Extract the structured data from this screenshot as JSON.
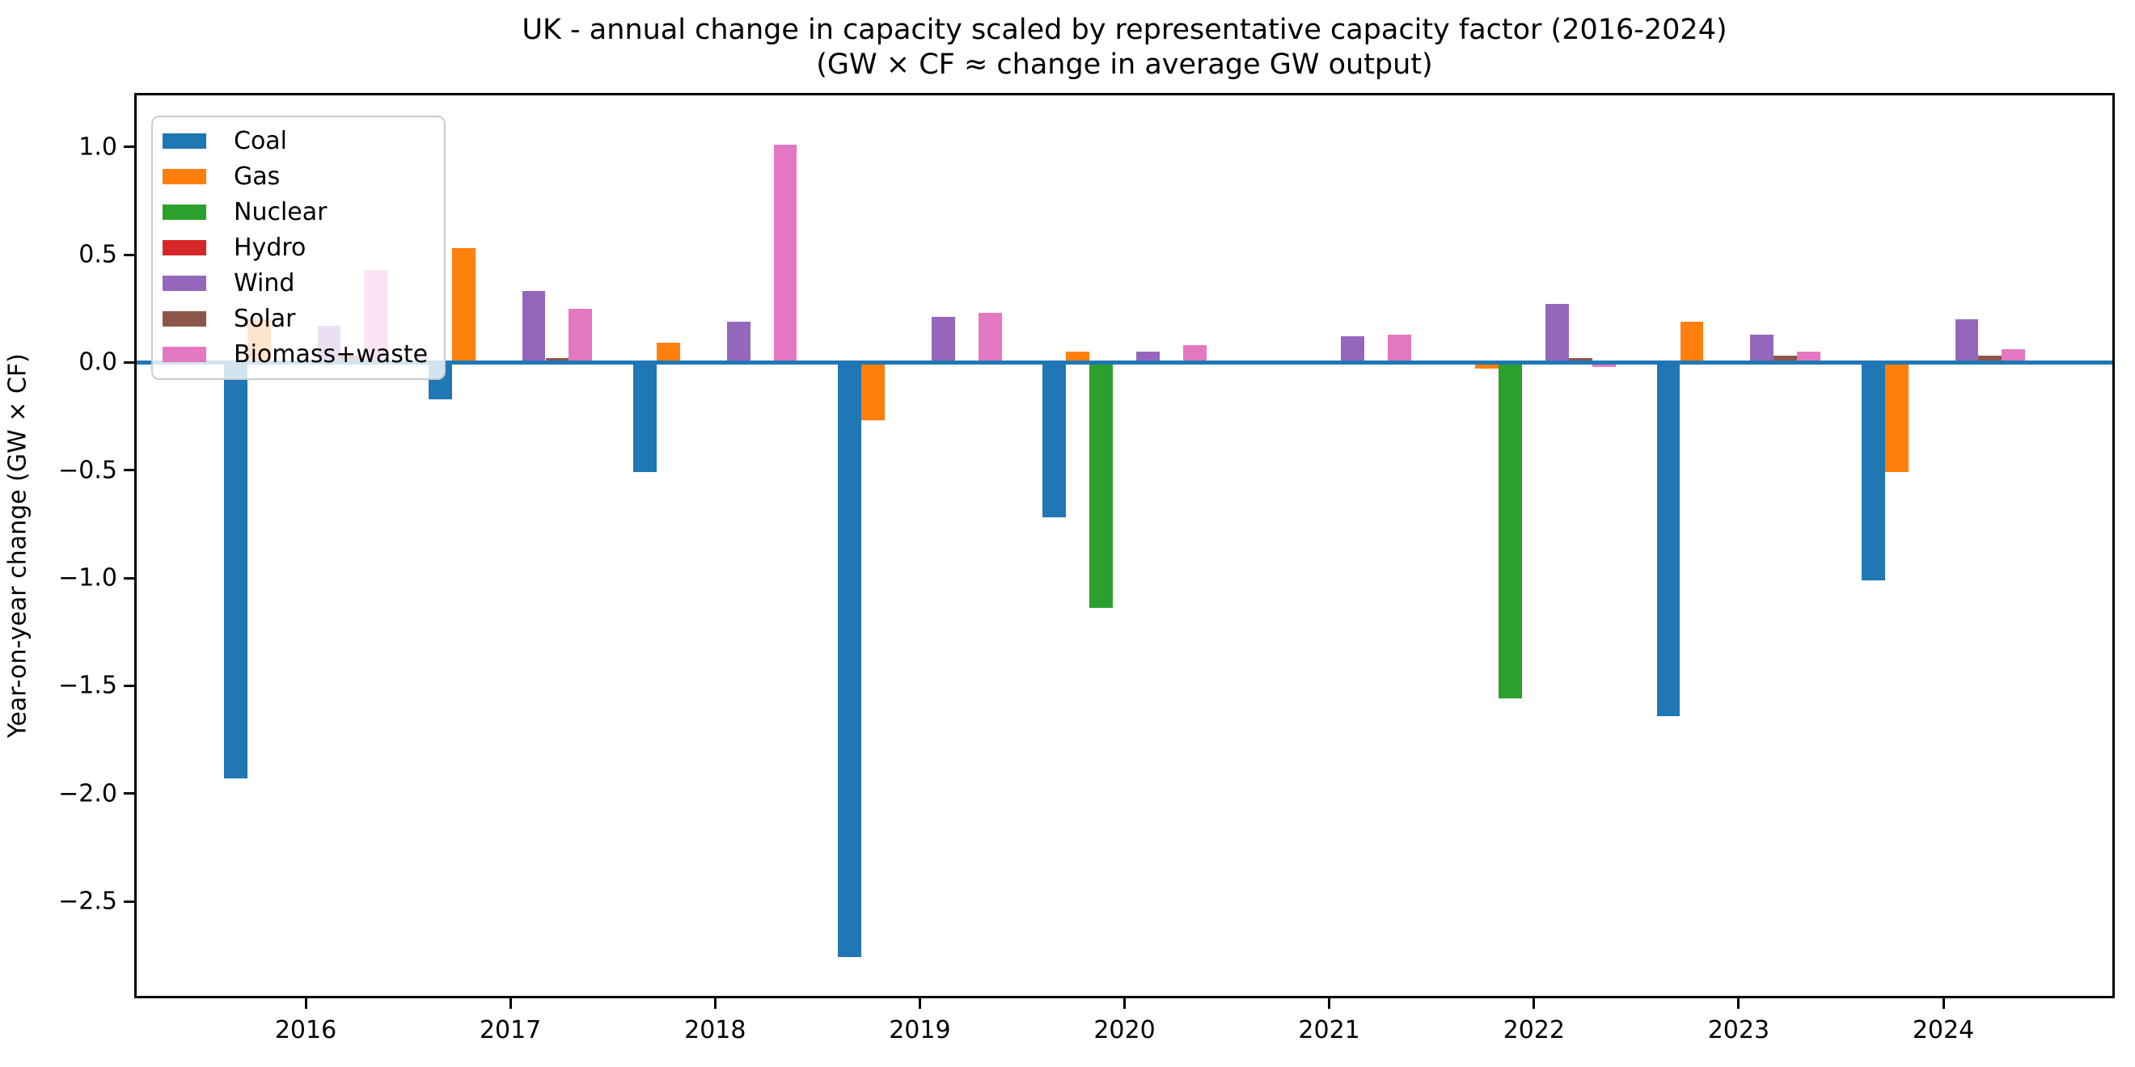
{
  "figure": {
    "title_line1": "UK - annual change in capacity scaled by representative capacity factor (2016-2024)",
    "title_line2": "(GW × CF ≈ change in average GW output)"
  },
  "chart_data": {
    "type": "bar",
    "title": "UK - annual change in capacity scaled by representative capacity factor (2016-2024)",
    "subtitle": "(GW × CF ≈ change in average GW output)",
    "xlabel": "",
    "ylabel": "Year-on-year change (GW × CF)",
    "categories": [
      "2016",
      "2017",
      "2018",
      "2019",
      "2020",
      "2021",
      "2022",
      "2023",
      "2024"
    ],
    "series": [
      {
        "name": "Coal",
        "color": "#1f77b4",
        "values": [
          -1.93,
          -0.17,
          -0.51,
          -2.76,
          -0.72,
          0.0,
          -0.01,
          -1.64,
          -1.01
        ]
      },
      {
        "name": "Gas",
        "color": "#ff7f0e",
        "values": [
          0.2,
          0.53,
          0.09,
          -0.27,
          0.05,
          0.0,
          -0.03,
          0.19,
          -0.51
        ]
      },
      {
        "name": "Nuclear",
        "color": "#2ca02c",
        "values": [
          0.0,
          0.0,
          0.0,
          0.0,
          -1.14,
          0.0,
          -1.56,
          0.0,
          0.0
        ]
      },
      {
        "name": "Hydro",
        "color": "#d62728",
        "values": [
          0.01,
          0.0,
          0.0,
          0.0,
          0.0,
          0.0,
          0.0,
          0.0,
          0.0
        ]
      },
      {
        "name": "Wind",
        "color": "#9467bd",
        "values": [
          0.17,
          0.33,
          0.19,
          0.21,
          0.05,
          0.12,
          0.27,
          0.13,
          0.2
        ]
      },
      {
        "name": "Solar",
        "color": "#8c564b",
        "values": [
          0.03,
          0.02,
          0.0,
          0.0,
          0.0,
          0.0,
          0.02,
          0.03,
          0.03
        ]
      },
      {
        "name": "Biomass+waste",
        "color": "#e377c2",
        "values": [
          0.43,
          0.25,
          1.01,
          0.23,
          0.08,
          0.13,
          -0.02,
          0.05,
          0.06
        ]
      }
    ],
    "yticks_values": [
      1.0,
      0.5,
      0.0,
      -0.5,
      -1.0,
      -1.5,
      -2.0,
      -2.5
    ],
    "yticks_labels": [
      "1.0",
      "0.5",
      "0.0",
      "−0.5",
      "−1.0",
      "−1.5",
      "−2.0",
      "−2.5"
    ],
    "ylim": [
      -2.95,
      1.25
    ],
    "zero_line_color": "#1f77b4",
    "legend_position": "upper left",
    "grid": false
  }
}
